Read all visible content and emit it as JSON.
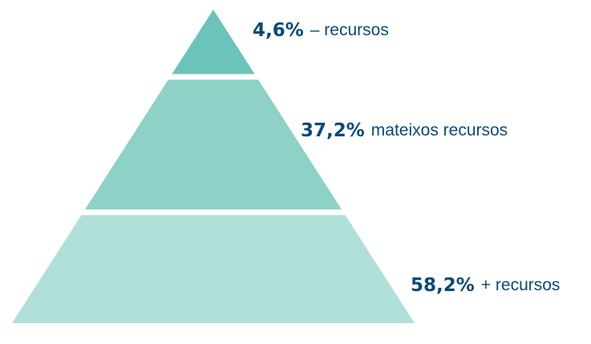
{
  "chart_data": {
    "type": "pyramid",
    "categories": [
      "– recursos",
      "mateixos recursos",
      "+ recursos"
    ],
    "values": [
      4.6,
      37.2,
      58.2
    ],
    "value_labels": [
      "4,6%",
      "37,2%",
      "58,2%"
    ],
    "colors": [
      "#6cc3b9",
      "#8dd1c7",
      "#b0dfd9"
    ]
  }
}
